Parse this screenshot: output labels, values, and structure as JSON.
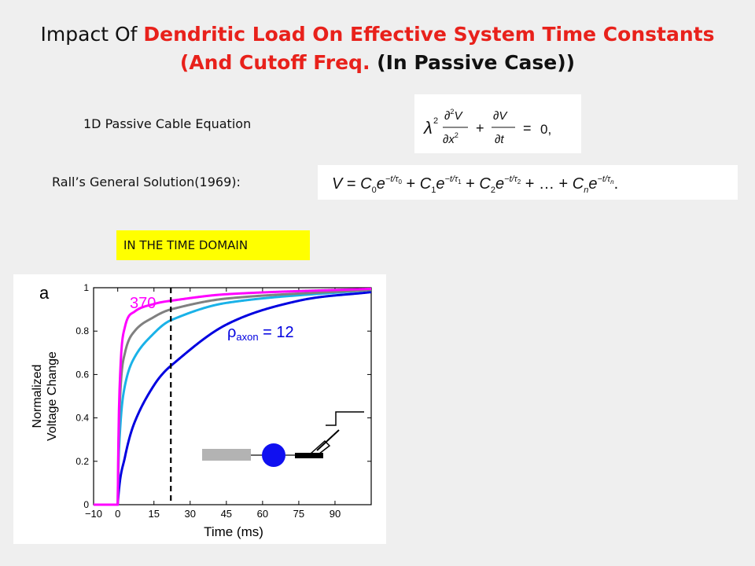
{
  "title": {
    "line1_plain": "Impact Of ",
    "line1_red": "Dendritic Load On Effective System Time Constants",
    "line2_red": "(And Cutoff Freq.",
    "line2_bold": " (In Passive Case))"
  },
  "cable": {
    "label": "1D  Passive Cable Equation"
  },
  "rall": {
    "label": "Rall’s General Solution(1969):"
  },
  "section_label": "IN THE TIME DOMAIN",
  "chart_data": {
    "type": "line",
    "panel_label": "a",
    "xlabel": "Time (ms)",
    "ylabel_line1": "Normalized",
    "ylabel_line2": "Voltage Change",
    "xlim": [
      -10,
      105
    ],
    "ylim": [
      0,
      1
    ],
    "x_ticks": [
      "−10",
      "0",
      "15",
      "30",
      "45",
      "60",
      "75",
      "90"
    ],
    "y_ticks": [
      "0",
      "0.2",
      "0.4",
      "0.6",
      "0.8",
      "1"
    ],
    "step_onset_ms": 0,
    "dashed_marker_ms": 22,
    "annotation_high": "370",
    "annotation_low_symbol": "ρ",
    "annotation_low_sub": "axon",
    "annotation_low_value": " = 12",
    "series": [
      {
        "name": "370",
        "color": "#ff00ff",
        "values_at_ms": {
          "0": 0,
          "1": 0.6,
          "3": 0.82,
          "7": 0.89,
          "15": 0.925,
          "22": 0.94,
          "45": 0.97,
          "105": 0.995
        }
      },
      {
        "name": "",
        "color": "#808080",
        "values_at_ms": {
          "0": 0,
          "1": 0.5,
          "3": 0.7,
          "7": 0.8,
          "15": 0.865,
          "22": 0.9,
          "45": 0.95,
          "105": 0.99
        }
      },
      {
        "name": "",
        "color": "#1ab2e8",
        "values_at_ms": {
          "0": 0,
          "1": 0.35,
          "3": 0.55,
          "7": 0.68,
          "15": 0.79,
          "22": 0.85,
          "45": 0.93,
          "105": 0.99
        }
      },
      {
        "name": "12",
        "color": "#0000e0",
        "values_at_ms": {
          "0": 0,
          "3": 0.22,
          "7": 0.38,
          "15": 0.55,
          "22": 0.64,
          "45": 0.83,
          "75": 0.94,
          "105": 0.98
        }
      }
    ],
    "legend": "none",
    "grid": false
  }
}
